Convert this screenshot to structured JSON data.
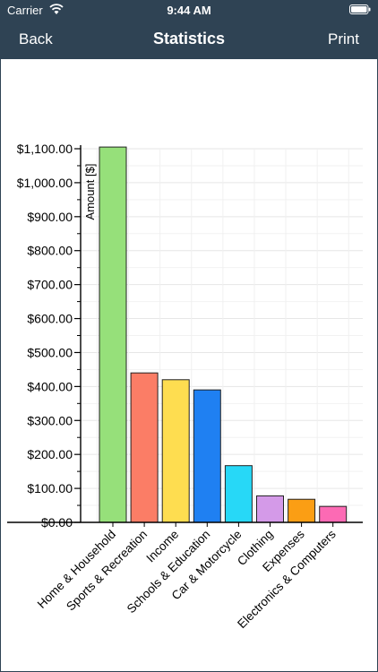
{
  "status_bar": {
    "carrier": "Carrier",
    "time": "9:44 AM",
    "wifi_icon": "wifi-icon",
    "battery_icon": "battery-icon"
  },
  "nav_bar": {
    "back_label": "Back",
    "title": "Statistics",
    "print_label": "Print",
    "background_color": "#2f4354"
  },
  "chart_data": {
    "type": "bar",
    "ylabel": "Amount [$]",
    "xlabel": "",
    "ylim": [
      0,
      1100
    ],
    "y_tick_step": 100,
    "y_ticks": [
      "$0.00",
      "$100.00",
      "$200.00",
      "$300.00",
      "$400.00",
      "$500.00",
      "$600.00",
      "$700.00",
      "$800.00",
      "$900.00",
      "$1,000.00",
      "$1,100.00"
    ],
    "grid": true,
    "categories": [
      "Home & Household",
      "Sports & Recreation",
      "Income",
      "Schools & Education",
      "Car & Motorcycle",
      "Clothing",
      "Expenses",
      "Electronics & Computers"
    ],
    "values": [
      1105,
      440,
      420,
      390,
      167,
      78,
      68,
      47
    ],
    "colors": [
      "#96e07a",
      "#fb7d66",
      "#fedd50",
      "#1f80f2",
      "#27d8f7",
      "#d49ae8",
      "#fb9e14",
      "#fc6ab4"
    ]
  }
}
